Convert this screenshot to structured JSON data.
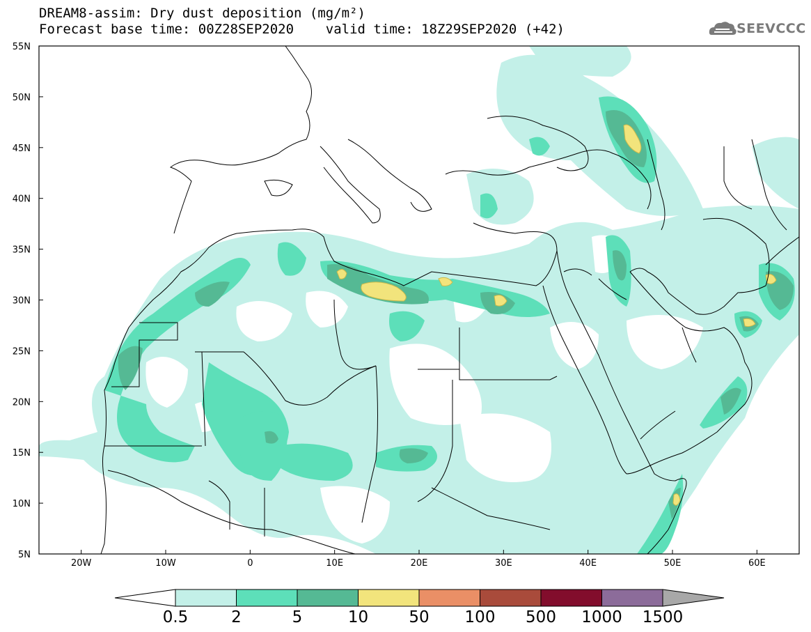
{
  "header": {
    "line1": "DREAM8-assim: Dry dust deposition (mg/m²)",
    "line2": "Forecast base time: 00Z28SEP2020    valid time: 18Z29SEP2020 (+42)"
  },
  "logo": {
    "text": "SEEVCCC",
    "icon": "cloud-icon"
  },
  "map": {
    "lat_labels": [
      "55N",
      "50N",
      "45N",
      "40N",
      "35N",
      "30N",
      "25N",
      "20N",
      "15N",
      "10N",
      "5N"
    ],
    "lon_labels": [
      "20W",
      "10W",
      "0",
      "10E",
      "20E",
      "30E",
      "40E",
      "50E",
      "60E"
    ],
    "lon_range": [
      -25,
      65
    ],
    "lat_range": [
      5,
      55
    ]
  },
  "colorbar": {
    "labels": [
      "0.5",
      "2",
      "5",
      "10",
      "50",
      "100",
      "500",
      "1000",
      "1500"
    ],
    "colors": [
      "#c3f0e8",
      "#5ddfb9",
      "#55b994",
      "#f2e47c",
      "#ea8f66",
      "#a94b3b",
      "#820d2c",
      "#8c6c9a"
    ],
    "under_color": "#ffffff",
    "over_color": "#a8a8a8"
  },
  "levels": {
    "l1": "#c3f0e8",
    "l2": "#5ddfb9",
    "l3": "#55b994",
    "l4": "#f2e47c"
  }
}
